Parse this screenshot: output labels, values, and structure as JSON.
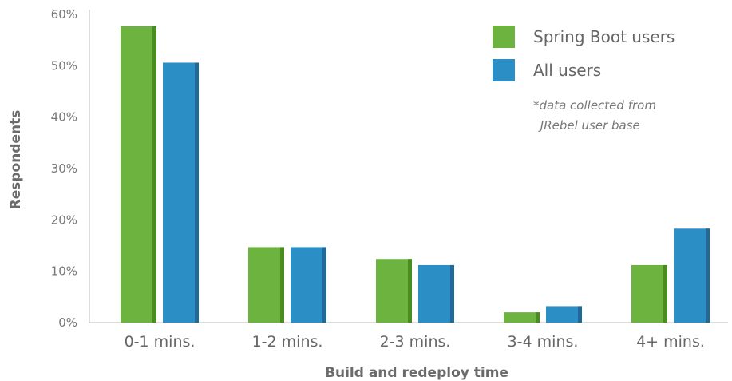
{
  "chart_data": {
    "type": "bar",
    "categories": [
      "0-1 mins.",
      "1-2 mins.",
      "2-3 mins.",
      "3-4 mins.",
      "4+ mins."
    ],
    "series": [
      {
        "name": "Spring Boot users",
        "values": [
          57.7,
          14.7,
          12.4,
          2.0,
          11.2
        ],
        "color": "#6db33f",
        "shade": "#4a8c21"
      },
      {
        "name": "All users",
        "values": [
          50.6,
          14.7,
          11.2,
          3.2,
          18.3
        ],
        "color": "#2b8fc6",
        "shade": "#1f6a99"
      }
    ],
    "yticks": [
      "0%",
      "10%",
      "20%",
      "30%",
      "40%",
      "50%",
      "60%"
    ],
    "ylim": [
      0,
      60
    ],
    "xlabel": "Build and redeploy time",
    "ylabel": "Respondents",
    "grid": false,
    "legend_position": "top-right",
    "note_lines": [
      "*data collected from",
      " JRebel user base"
    ]
  }
}
